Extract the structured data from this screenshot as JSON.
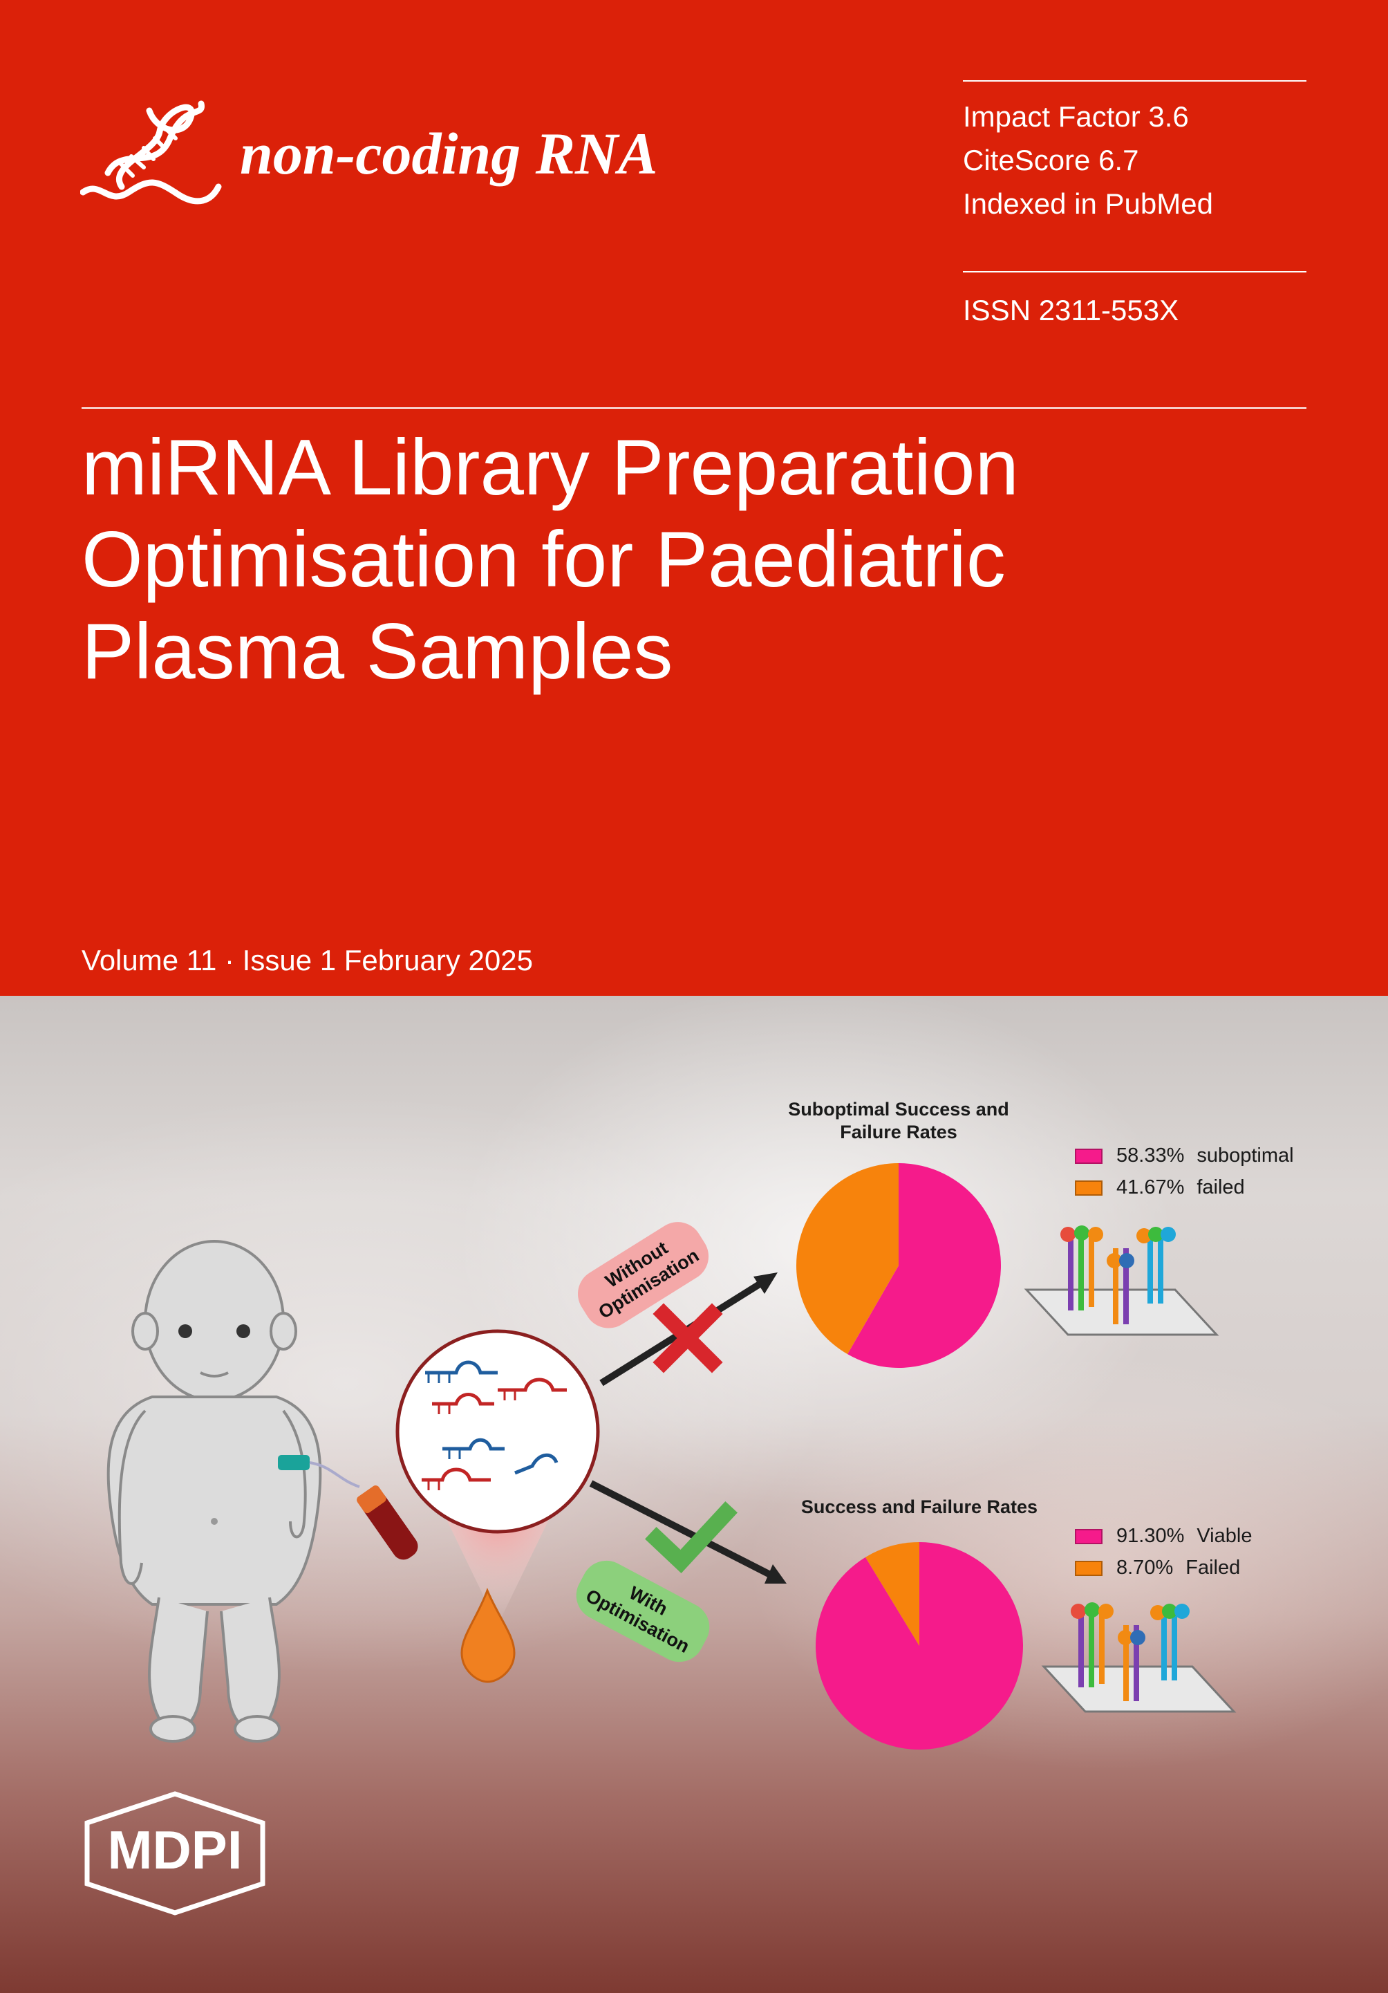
{
  "journal": {
    "name": "non-coding RNA",
    "impact_factor": "Impact Factor 3.6",
    "citescore": "CiteScore 6.7",
    "indexed": "Indexed in PubMed",
    "issn": "ISSN 2311-553X",
    "volume_issue": "Volume 11 · Issue 1 February 2025"
  },
  "article": {
    "title": "miRNA Library Preparation Optimisation for Paediatric Plasma Samples"
  },
  "publisher": {
    "logo_text": "MDPI"
  },
  "colors": {
    "brand_red": "#db2109",
    "pie_magenta": "#f51b8b",
    "pie_orange": "#f7830c"
  },
  "graphic": {
    "without_label_1": "Without",
    "without_label_2": "Optimisation",
    "with_label_1": "With",
    "with_label_2": "Optimisation"
  },
  "chart_data": [
    {
      "type": "pie",
      "title": "Suboptimal Success and Failure Rates",
      "slices": [
        {
          "value": 58.33,
          "percent_label": "58.33%",
          "name": "suboptimal",
          "color": "#f51b8b"
        },
        {
          "value": 41.67,
          "percent_label": "41.67%",
          "name": "failed",
          "color": "#f7830c"
        }
      ],
      "legend": "right"
    },
    {
      "type": "pie",
      "title": "Success and Failure Rates",
      "slices": [
        {
          "value": 91.3,
          "percent_label": "91.30%",
          "name": "Viable",
          "color": "#f51b8b"
        },
        {
          "value": 8.7,
          "percent_label": "8.70%",
          "name": "Failed",
          "color": "#f7830c"
        }
      ],
      "legend": "right"
    }
  ]
}
